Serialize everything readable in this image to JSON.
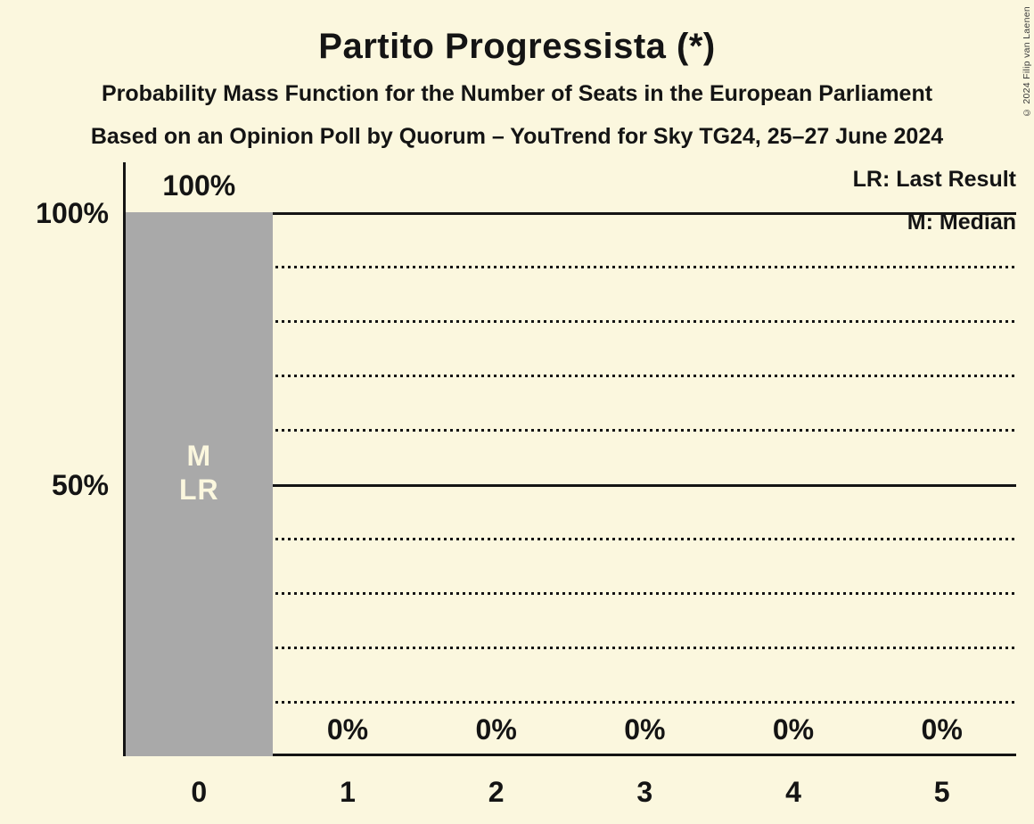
{
  "title": "Partito Progressista (*)",
  "subtitle": "Probability Mass Function for the Number of Seats in the European Parliament",
  "source_line": "Based on an Opinion Poll by Quorum – YouTrend for Sky TG24, 25–27 June 2024",
  "copyright": "© 2024 Filip van Laenen",
  "legend": {
    "lr": "LR: Last Result",
    "m": "M: Median"
  },
  "colors": {
    "background": "#FBF7DE",
    "bar": "#A9A9A9",
    "text": "#141414",
    "annotation_text": "#FBF7DE"
  },
  "chart_data": {
    "type": "bar",
    "title": "Partito Progressista (*)",
    "xlabel": "",
    "ylabel": "",
    "categories": [
      "0",
      "1",
      "2",
      "3",
      "4",
      "5"
    ],
    "values": [
      100,
      0,
      0,
      0,
      0,
      0
    ],
    "value_labels": [
      "100%",
      "0%",
      "0%",
      "0%",
      "0%",
      "0%"
    ],
    "ylim": [
      0,
      100
    ],
    "yticks": [
      {
        "value": 100,
        "label": "100%"
      },
      {
        "value": 50,
        "label": "50%"
      }
    ],
    "gridlines": {
      "solid": [
        100,
        50
      ],
      "dotted": [
        90,
        80,
        70,
        60,
        40,
        30,
        20,
        10
      ]
    },
    "grid": "horizontal",
    "legend_position": "top-right",
    "median_seats": 0,
    "last_result_seats": 0,
    "annotations": [
      {
        "index": 0,
        "lines": [
          "M",
          "LR"
        ]
      }
    ]
  }
}
